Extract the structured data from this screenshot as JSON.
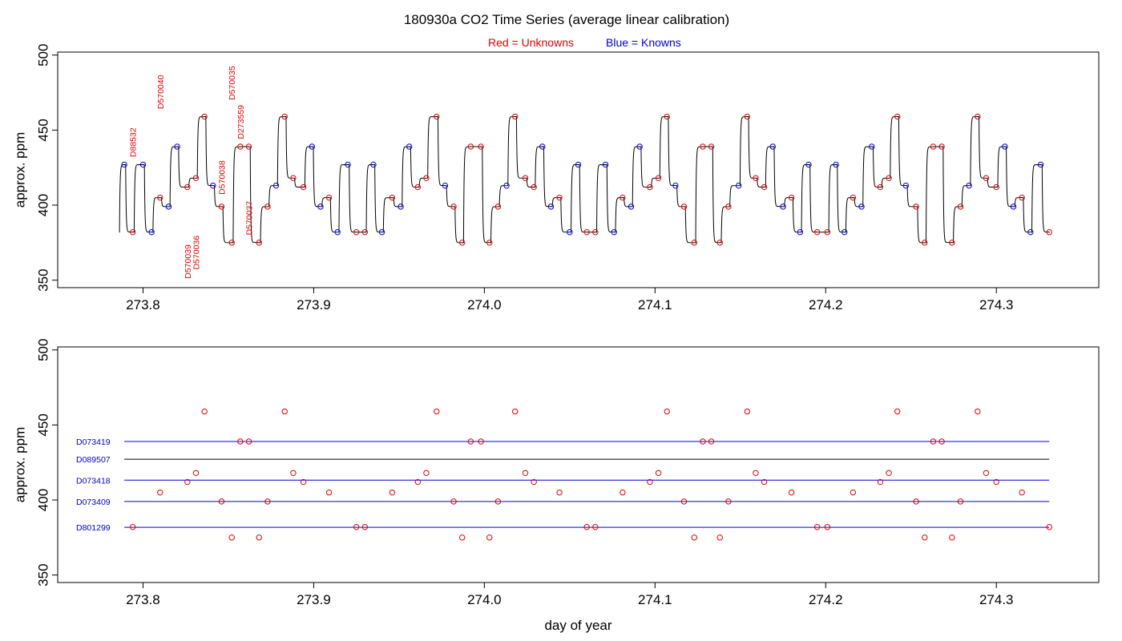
{
  "title": "180930a   CO2 Time Series (average linear calibration)",
  "legend": {
    "unknowns_label": "Red = Unknowns",
    "knowns_label": "Blue = Knowns",
    "unknown_color": "#e00000",
    "known_color": "#0000dd",
    "line_color": "#000000"
  },
  "chart_data": [
    {
      "type": "line",
      "xlabel": "",
      "ylabel": "approx. ppm",
      "xlim": [
        273.75,
        274.36
      ],
      "ylim": [
        345,
        502
      ],
      "xticks": [
        273.8,
        273.9,
        274.0,
        274.1,
        274.2,
        274.3
      ],
      "xtick_labels": [
        "273.8",
        "273.9",
        "274.0",
        "274.1",
        "274.2",
        "274.3"
      ],
      "yticks": [
        350,
        400,
        450,
        500
      ],
      "ytick_labels": [
        "350",
        "400",
        "450",
        "500"
      ],
      "trace_start": [
        273.786,
        382
      ],
      "samples": [
        [
          273.789,
          427,
          "K"
        ],
        [
          273.794,
          382,
          "U"
        ],
        [
          273.8,
          427,
          "K"
        ],
        [
          273.805,
          382,
          "K"
        ],
        [
          273.81,
          405,
          "U"
        ],
        [
          273.815,
          399,
          "K"
        ],
        [
          273.82,
          439,
          "K"
        ],
        [
          273.826,
          412,
          "U"
        ],
        [
          273.831,
          418,
          "U"
        ],
        [
          273.836,
          459,
          "U"
        ],
        [
          273.841,
          413,
          "K"
        ],
        [
          273.846,
          399,
          "U"
        ],
        [
          273.852,
          375,
          "U"
        ],
        [
          273.857,
          439,
          "U"
        ],
        [
          273.862,
          439,
          "U"
        ],
        [
          273.868,
          375,
          "U"
        ],
        [
          273.873,
          399,
          "U"
        ],
        [
          273.878,
          413,
          "K"
        ],
        [
          273.883,
          459,
          "U"
        ],
        [
          273.888,
          418,
          "U"
        ],
        [
          273.894,
          412,
          "U"
        ],
        [
          273.899,
          439,
          "K"
        ],
        [
          273.904,
          399,
          "K"
        ],
        [
          273.909,
          405,
          "U"
        ],
        [
          273.914,
          382,
          "K"
        ],
        [
          273.92,
          427,
          "K"
        ],
        [
          273.925,
          382,
          "U"
        ],
        [
          273.93,
          382,
          "U"
        ],
        [
          273.935,
          427,
          "K"
        ],
        [
          273.94,
          382,
          "K"
        ],
        [
          273.946,
          405,
          "U"
        ],
        [
          273.951,
          399,
          "K"
        ],
        [
          273.956,
          439,
          "K"
        ],
        [
          273.961,
          412,
          "U"
        ],
        [
          273.966,
          418,
          "U"
        ],
        [
          273.972,
          459,
          "U"
        ],
        [
          273.977,
          413,
          "K"
        ],
        [
          273.982,
          399,
          "U"
        ],
        [
          273.987,
          375,
          "U"
        ],
        [
          273.992,
          439,
          "U"
        ],
        [
          273.998,
          439,
          "U"
        ],
        [
          274.003,
          375,
          "U"
        ],
        [
          274.008,
          399,
          "U"
        ],
        [
          274.013,
          413,
          "K"
        ],
        [
          274.018,
          459,
          "U"
        ],
        [
          274.024,
          418,
          "U"
        ],
        [
          274.029,
          412,
          "U"
        ],
        [
          274.034,
          439,
          "K"
        ],
        [
          274.039,
          399,
          "K"
        ],
        [
          274.044,
          405,
          "U"
        ],
        [
          274.05,
          382,
          "K"
        ],
        [
          274.055,
          427,
          "K"
        ],
        [
          274.06,
          382,
          "U"
        ],
        [
          274.065,
          382,
          "U"
        ],
        [
          274.071,
          427,
          "K"
        ],
        [
          274.076,
          382,
          "K"
        ],
        [
          274.081,
          405,
          "U"
        ],
        [
          274.086,
          399,
          "K"
        ],
        [
          274.091,
          439,
          "K"
        ],
        [
          274.097,
          412,
          "U"
        ],
        [
          274.102,
          418,
          "U"
        ],
        [
          274.107,
          459,
          "U"
        ],
        [
          274.112,
          413,
          "K"
        ],
        [
          274.117,
          399,
          "U"
        ],
        [
          274.123,
          375,
          "U"
        ],
        [
          274.128,
          439,
          "U"
        ],
        [
          274.133,
          439,
          "U"
        ],
        [
          274.138,
          375,
          "U"
        ],
        [
          274.143,
          399,
          "U"
        ],
        [
          274.149,
          413,
          "K"
        ],
        [
          274.154,
          459,
          "U"
        ],
        [
          274.159,
          418,
          "U"
        ],
        [
          274.164,
          412,
          "U"
        ],
        [
          274.169,
          439,
          "K"
        ],
        [
          274.175,
          399,
          "K"
        ],
        [
          274.18,
          405,
          "U"
        ],
        [
          274.185,
          382,
          "K"
        ],
        [
          274.19,
          427,
          "K"
        ],
        [
          274.195,
          382,
          "U"
        ],
        [
          274.201,
          382,
          "U"
        ],
        [
          274.206,
          427,
          "K"
        ],
        [
          274.211,
          382,
          "K"
        ],
        [
          274.216,
          405,
          "U"
        ],
        [
          274.221,
          399,
          "K"
        ],
        [
          274.227,
          439,
          "K"
        ],
        [
          274.232,
          412,
          "U"
        ],
        [
          274.237,
          418,
          "U"
        ],
        [
          274.242,
          459,
          "U"
        ],
        [
          274.247,
          413,
          "K"
        ],
        [
          274.253,
          399,
          "U"
        ],
        [
          274.258,
          375,
          "U"
        ],
        [
          274.263,
          439,
          "U"
        ],
        [
          274.268,
          439,
          "U"
        ],
        [
          274.274,
          375,
          "U"
        ],
        [
          274.279,
          399,
          "U"
        ],
        [
          274.284,
          413,
          "K"
        ],
        [
          274.289,
          459,
          "U"
        ],
        [
          274.294,
          418,
          "U"
        ],
        [
          274.3,
          412,
          "U"
        ],
        [
          274.305,
          439,
          "K"
        ],
        [
          274.31,
          399,
          "K"
        ],
        [
          274.315,
          405,
          "U"
        ],
        [
          274.32,
          382,
          "K"
        ],
        [
          274.326,
          427,
          "K"
        ],
        [
          274.331,
          382,
          "U"
        ]
      ],
      "annotations": [
        {
          "text": "D88532",
          "x": 273.794,
          "y": 432
        },
        {
          "text": "D570040",
          "x": 273.81,
          "y": 464
        },
        {
          "text": "D570039",
          "x": 273.826,
          "y": 351
        },
        {
          "text": "D570036",
          "x": 273.831,
          "y": 357
        },
        {
          "text": "D570038",
          "x": 273.846,
          "y": 407
        },
        {
          "text": "D570035",
          "x": 273.852,
          "y": 470
        },
        {
          "text": "D273559",
          "x": 273.857,
          "y": 444
        },
        {
          "text": "D570037",
          "x": 273.862,
          "y": 380
        }
      ]
    },
    {
      "type": "scatter",
      "xlabel": "day of year",
      "ylabel": "approx. ppm",
      "xlim": [
        273.75,
        274.36
      ],
      "ylim": [
        345,
        502
      ],
      "xticks": [
        273.8,
        273.9,
        274.0,
        274.1,
        274.2,
        274.3
      ],
      "xtick_labels": [
        "273.8",
        "273.9",
        "274.0",
        "274.1",
        "274.2",
        "274.3"
      ],
      "yticks": [
        350,
        400,
        450,
        500
      ],
      "ytick_labels": [
        "350",
        "400",
        "450",
        "500"
      ],
      "reference_lines": [
        {
          "name": "D073419",
          "y": 439,
          "color": "#0000dd"
        },
        {
          "name": "D089507",
          "y": 427.2,
          "color": "#000000"
        },
        {
          "name": "D073418",
          "y": 413.2,
          "color": "#0000dd"
        },
        {
          "name": "D073409",
          "y": 399,
          "color": "#0000dd"
        },
        {
          "name": "D801299",
          "y": 381.8,
          "color": "#0000dd"
        }
      ],
      "reference_x_range": [
        273.789,
        274.331
      ]
    }
  ]
}
